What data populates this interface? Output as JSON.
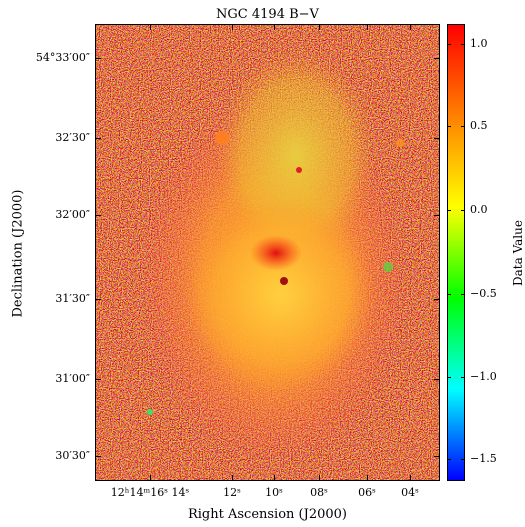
{
  "title": "NGC 4194 B−V",
  "x_axis": {
    "label": "Right Ascension (J2000)",
    "ticks": [
      "12ʰ14ᵐ16ˢ 14ˢ",
      "12ˢ",
      "10ˢ",
      "08ˢ",
      "06ˢ",
      "04ˢ"
    ]
  },
  "y_axis": {
    "label": "Declination (J2000)",
    "ticks": [
      "54°33′00″",
      "32′30″",
      "32′00″",
      "31′30″",
      "31′00″",
      "30′30″"
    ]
  },
  "colorbar": {
    "label": "Data Value",
    "ticks": [
      "1.0",
      "0.5",
      "0.0",
      "−0.5",
      "−1.0",
      "−1.5"
    ],
    "colors": [
      "#ff0000",
      "#ff8000",
      "#ffff00",
      "#00ff00",
      "#00ffff",
      "#0000ff"
    ]
  }
}
